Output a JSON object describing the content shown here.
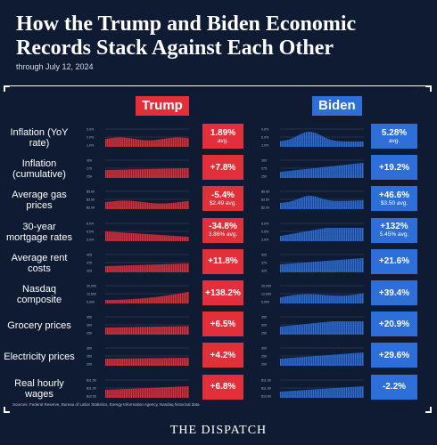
{
  "header": {
    "title": "How the Trump and Biden Economic Records Stack Against Each Other",
    "subtitle": "through July 12, 2024"
  },
  "columns": {
    "trump": "Trump",
    "biden": "Biden"
  },
  "colors": {
    "trump": "#e2303a",
    "biden": "#2d6ed8",
    "background": "#0f1b33"
  },
  "rows": [
    {
      "label": "Inflation (YoY rate)",
      "trump": {
        "value": "1.89%",
        "sub": "avg."
      },
      "biden": {
        "value": "5.28%",
        "sub": "avg."
      },
      "trump_ticks": [
        "3.0%",
        "2.0%",
        "1.0%"
      ],
      "biden_ticks": [
        "9.0%",
        "6.0%",
        "3.0%"
      ]
    },
    {
      "label": "Inflation (cumulative)",
      "trump": {
        "value": "+7.8%",
        "sub": ""
      },
      "biden": {
        "value": "+19.2%",
        "sub": ""
      },
      "trump_ticks": [
        "300",
        "275",
        "250"
      ],
      "biden_ticks": [
        "300",
        "275",
        "250"
      ]
    },
    {
      "label": "Average gas prices",
      "trump": {
        "value": "-5.4%",
        "sub": "$2.49 avg."
      },
      "biden": {
        "value": "+46.6%",
        "sub": "$3.50 avg."
      },
      "trump_ticks": [
        "$5.00",
        "$3.50",
        "$2.00"
      ],
      "biden_ticks": [
        "$5.00",
        "$3.50",
        "$2.00"
      ]
    },
    {
      "label": "30-year mortgage rates",
      "trump": {
        "value": "-34.8%",
        "sub": "3.86% avg."
      },
      "biden": {
        "value": "+132%",
        "sub": "5.45% avg."
      },
      "trump_ticks": [
        "8.0%",
        "5.5%",
        "3.0%"
      ],
      "biden_ticks": [
        "8.0%",
        "5.5%",
        "3.0%"
      ]
    },
    {
      "label": "Average rent costs",
      "trump": {
        "value": "+11.8%",
        "sub": ""
      },
      "biden": {
        "value": "+21.6%",
        "sub": ""
      },
      "trump_ticks": [
        "425",
        "375",
        "325"
      ],
      "biden_ticks": [
        "425",
        "375",
        "325"
      ]
    },
    {
      "label": "Nasdaq composite",
      "trump": {
        "value": "+138.2%",
        "sub": ""
      },
      "biden": {
        "value": "+39.4%",
        "sub": ""
      },
      "trump_ticks": [
        "20,000",
        "12,500",
        "5,000"
      ],
      "biden_ticks": [
        "20,000",
        "12,500",
        "5,000"
      ]
    },
    {
      "label": "Grocery prices",
      "trump": {
        "value": "+6.5%",
        "sub": ""
      },
      "biden": {
        "value": "+20.9%",
        "sub": ""
      },
      "trump_ticks": [
        "350",
        "300",
        "250"
      ],
      "biden_ticks": [
        "350",
        "300",
        "250"
      ]
    },
    {
      "label": "Electricity prices",
      "trump": {
        "value": "+4.2%",
        "sub": ""
      },
      "biden": {
        "value": "+29.6%",
        "sub": ""
      },
      "trump_ticks": [
        "300",
        "250",
        "200"
      ],
      "biden_ticks": [
        "300",
        "250",
        "200"
      ]
    },
    {
      "label": "Real hourly wages",
      "trump": {
        "value": "+6.8%",
        "sub": ""
      },
      "biden": {
        "value": "-2.2%",
        "sub": ""
      },
      "trump_ticks": [
        "$11.50",
        "$11.00",
        "$10.50"
      ],
      "biden_ticks": [
        "$11.50",
        "$11.00",
        "$10.50"
      ]
    }
  ],
  "sources": "Sources: Federal Reserve, Bureau of Labor Statistics, Energy Information Agency, Nasdaq historical data",
  "logo": "THE DISPATCH"
}
